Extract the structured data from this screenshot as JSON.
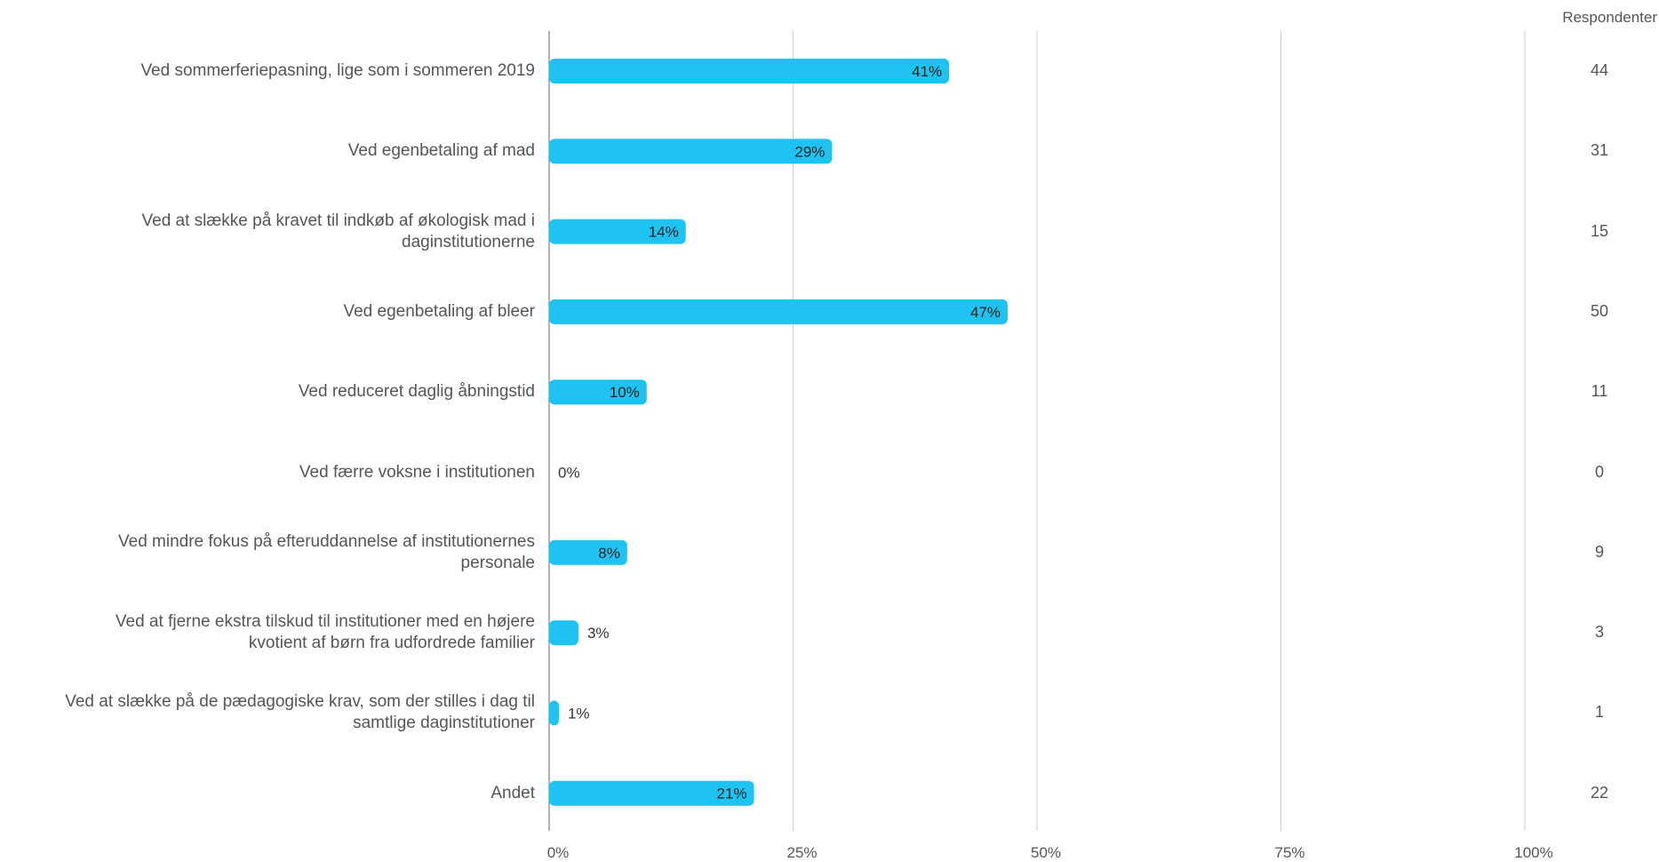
{
  "chart_data": {
    "type": "bar",
    "orientation": "horizontal",
    "categories": [
      "Ved sommerferiepasning, lige som i sommeren 2019",
      "Ved egenbetaling af mad",
      "Ved at slække på kravet til indkøb af økologisk mad i daginstitutionerne",
      "Ved egenbetaling af bleer",
      "Ved reduceret daglig åbningstid",
      "Ved færre voksne i institutionen",
      "Ved mindre fokus på efteruddannelse af institutionernes personale",
      "Ved at fjerne ekstra tilskud til institutioner med en højere kvotient af børn fra udfordrede familier",
      "Ved at slække på de pædagogiske krav, som der stilles i dag til samtlige daginstitutioner",
      "Andet"
    ],
    "category_lines": [
      [
        "Ved sommerferiepasning, lige som i sommeren 2019"
      ],
      [
        "Ved egenbetaling af mad"
      ],
      [
        "Ved at slække på kravet til indkøb af økologisk mad i",
        "daginstitutionerne"
      ],
      [
        "Ved egenbetaling af bleer"
      ],
      [
        "Ved reduceret daglig åbningstid"
      ],
      [
        "Ved færre voksne i institutionen"
      ],
      [
        "Ved mindre fokus på efteruddannelse af institutionernes",
        "personale"
      ],
      [
        "Ved at fjerne ekstra tilskud til institutioner med en højere",
        "kvotient af børn fra udfordrede familier"
      ],
      [
        "Ved at slække på de pædagogiske krav, som der stilles i dag til",
        "samtlige daginstitutioner"
      ],
      [
        "Andet"
      ]
    ],
    "values": [
      41,
      29,
      14,
      47,
      10,
      0,
      8,
      3,
      1,
      21
    ],
    "value_labels": [
      "41%",
      "29%",
      "14%",
      "47%",
      "10%",
      "0%",
      "8%",
      "3%",
      "1%",
      "21%"
    ],
    "respondents_header": "Respondenter",
    "respondents": [
      "44",
      "31",
      "15",
      "50",
      "11",
      "0",
      "9",
      "3",
      "1",
      "22"
    ],
    "xlim": [
      0,
      100
    ],
    "x_ticks": [
      0,
      25,
      50,
      75,
      100
    ],
    "x_tick_labels": [
      "0%",
      "25%",
      "50%",
      "75%",
      "100%"
    ],
    "grid": true,
    "colors": {
      "bar": "#1EC3F2",
      "grid": "#CCCCCC",
      "text": "#555555",
      "label_inside": "#222222"
    }
  }
}
